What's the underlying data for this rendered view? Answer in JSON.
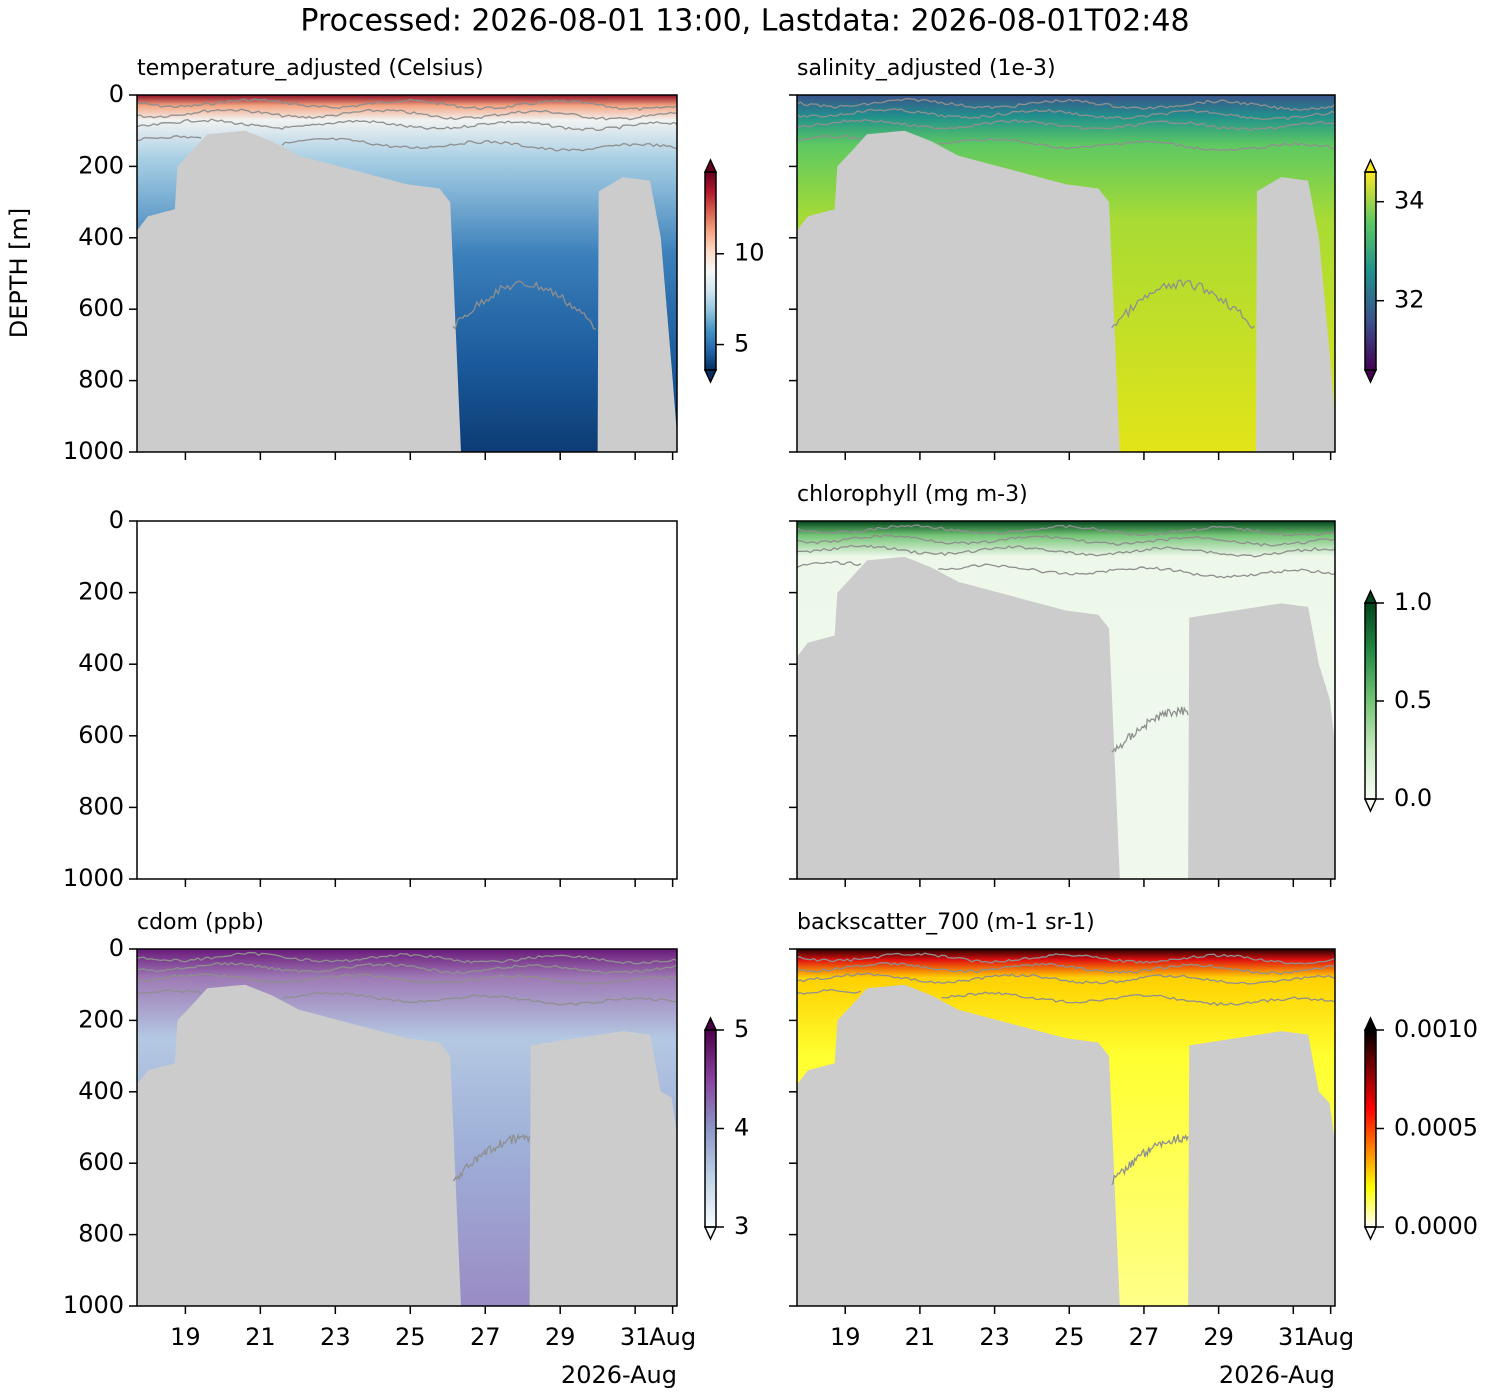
{
  "title": "Processed: 2026-08-01 13:00, Lastdata: 2026-08-01T02:48",
  "x_axis": {
    "xlim": [
      "2026-07-17T17:00",
      "2026-08-01T02:48"
    ],
    "xticks": [
      {
        "value": "2026-07-19",
        "label": "19"
      },
      {
        "value": "2026-07-21",
        "label": "21"
      },
      {
        "value": "2026-07-23",
        "label": "23"
      },
      {
        "value": "2026-07-25",
        "label": "25"
      },
      {
        "value": "2026-07-27",
        "label": "27"
      },
      {
        "value": "2026-07-29",
        "label": "29"
      },
      {
        "value": "2026-07-31",
        "label": "31"
      },
      {
        "value": "2026-08-01",
        "label": "Aug"
      }
    ],
    "xlabel": "2026-Aug"
  },
  "y_axis": {
    "ylabel": "DEPTH [m]",
    "ylim": [
      1000,
      0
    ],
    "yticks": [
      0,
      200,
      400,
      600,
      800,
      1000
    ]
  },
  "chart_data": [
    {
      "type": "heatmap",
      "title": "temperature_adjusted (Celsius)",
      "colorbar": {
        "lim": [
          3.6,
          14.5
        ],
        "ticks": [
          5,
          10
        ],
        "extend": "both",
        "colors": [
          "#053061",
          "#2166ac",
          "#4393c3",
          "#92c5de",
          "#d1e5f0",
          "#f7f7f7",
          "#fddbc7",
          "#f4a582",
          "#d6604d",
          "#b2182b",
          "#67001f"
        ]
      }
    },
    {
      "type": "heatmap",
      "title": "salinity_adjusted (1e-3)",
      "colorbar": {
        "lim": [
          30.6,
          34.6
        ],
        "ticks": [
          32,
          34
        ],
        "extend": "both",
        "colors": [
          "#440154",
          "#3b528b",
          "#21918c",
          "#5ec962",
          "#fde725"
        ]
      }
    },
    {
      "type": "heatmap"
    },
    {
      "type": "heatmap",
      "title": "chlorophyll (mg m-3)",
      "colorbar": {
        "lim": [
          0,
          1
        ],
        "ticks": [
          {
            "value": 0,
            "label": "0.0"
          },
          0.5,
          {
            "value": 1,
            "label": "1.0"
          }
        ],
        "extend": "both",
        "colors": [
          "#f7fcf5",
          "#c7e9c0",
          "#74c476",
          "#238b45",
          "#00441b"
        ]
      }
    },
    {
      "type": "heatmap",
      "title": "cdom (ppb)",
      "colorbar": {
        "lim": [
          3,
          5
        ],
        "ticks": [
          3,
          4,
          5
        ],
        "extend": "both",
        "colors": [
          "#f7fcfd",
          "#bfd3e6",
          "#8c96c6",
          "#88419d",
          "#4d004b"
        ]
      }
    },
    {
      "type": "heatmap",
      "title": "backscatter_700 (m-1 sr-1)",
      "colorbar": {
        "lim": [
          0,
          0.001
        ],
        "ticks": [
          {
            "value": 0,
            "label": "0.0000"
          },
          {
            "value": 0.0005,
            "label": "0.0005"
          },
          {
            "value": 0.001,
            "label": "0.0010"
          }
        ],
        "extend": "both",
        "colors": [
          "#ffffff",
          "#ffff00",
          "#ff8000",
          "#ff0000",
          "#800000",
          "#000000"
        ]
      }
    }
  ]
}
